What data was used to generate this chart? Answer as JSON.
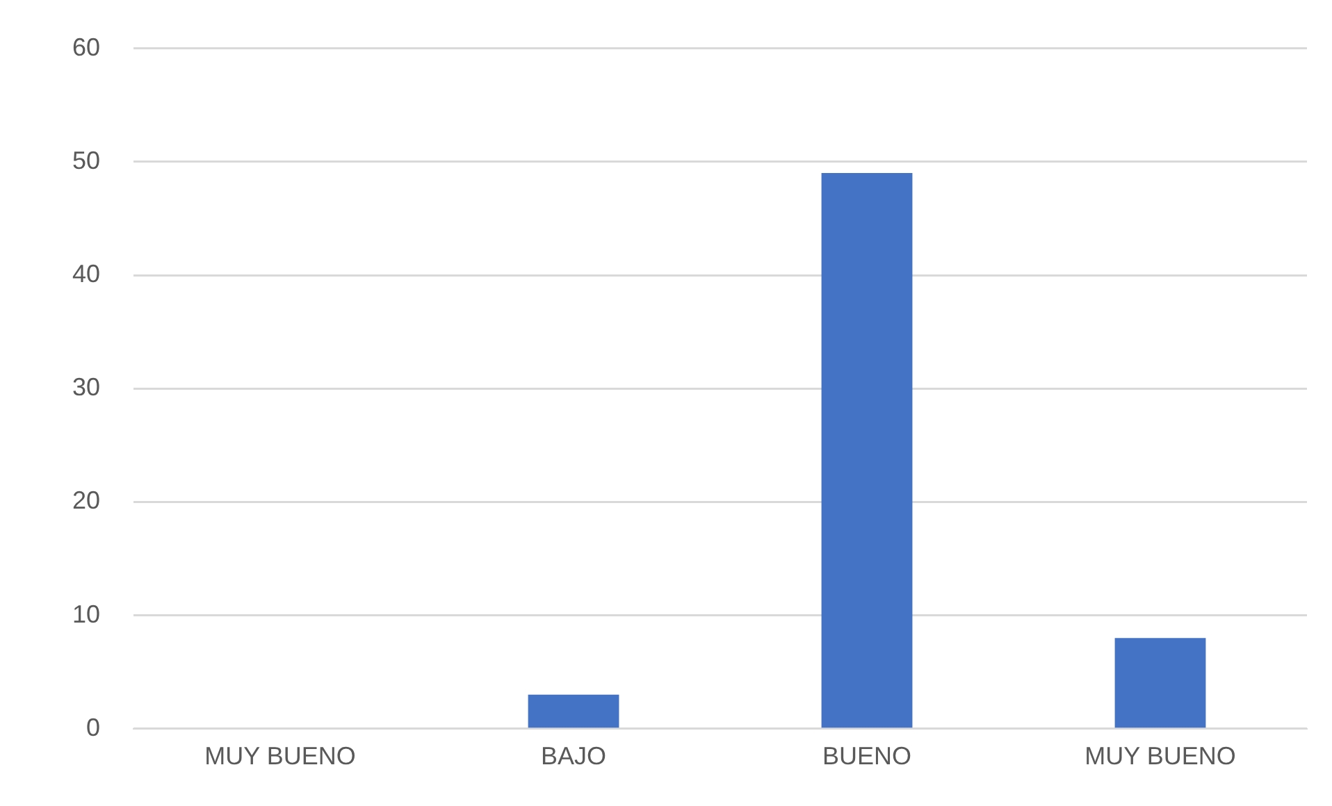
{
  "chart_data": {
    "type": "bar",
    "categories": [
      "MUY BUENO",
      "BAJO",
      "BUENO",
      "MUY BUENO"
    ],
    "values": [
      0,
      3,
      49,
      8
    ],
    "color": "#4472c4",
    "ylim": [
      0,
      60
    ],
    "yticks": [
      0,
      10,
      20,
      30,
      40,
      50,
      60
    ],
    "grid": "y"
  }
}
